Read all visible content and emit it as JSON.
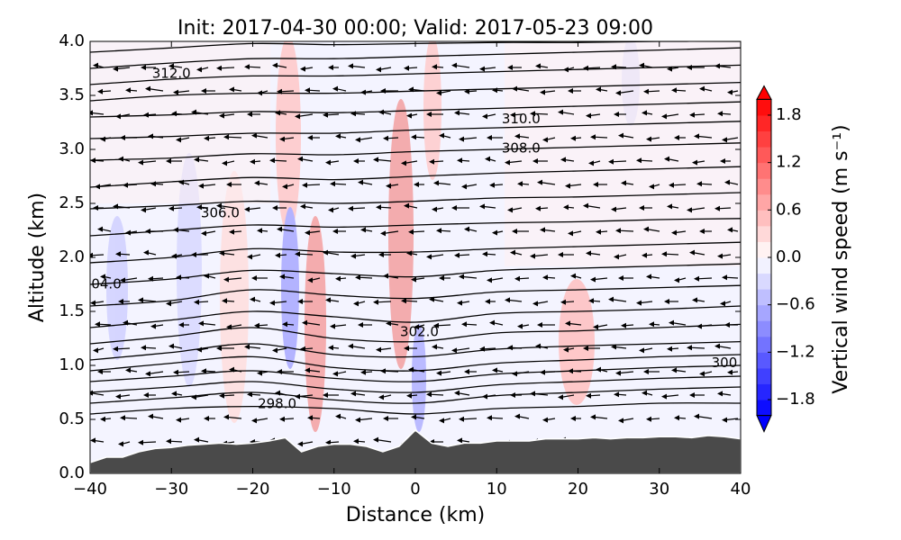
{
  "chart_data": {
    "type": "cross-section",
    "title": "Init: 2017-04-30 00:00; Valid: 2017-05-23 09:00",
    "x_label": "Distance (km)",
    "y_label": "Altitude (km)",
    "xlim": [
      -40,
      40
    ],
    "ylim": [
      0,
      4
    ],
    "xticks": [
      {
        "value": -40,
        "label": "−40"
      },
      {
        "value": -30,
        "label": "−30"
      },
      {
        "value": -20,
        "label": "−20"
      },
      {
        "value": -10,
        "label": "−10"
      },
      0,
      10,
      20,
      30,
      40
    ],
    "yticks": [
      {
        "value": 0,
        "label": "0.0"
      },
      {
        "value": 0.5,
        "label": "0.5"
      },
      {
        "value": 1,
        "label": "1.0"
      },
      {
        "value": 1.5,
        "label": "1.5"
      },
      {
        "value": 2,
        "label": "2.0"
      },
      {
        "value": 2.5,
        "label": "2.5"
      },
      {
        "value": 3,
        "label": "3.0"
      },
      {
        "value": 3.5,
        "label": "3.5"
      },
      {
        "value": 4,
        "label": "4.0"
      }
    ],
    "colorbar": {
      "label": "Vertical wind speed (m s⁻¹)",
      "clim": [
        -2,
        2
      ],
      "ticks": [
        {
          "value": -1.8,
          "label": "−1.8"
        },
        {
          "value": -1.2,
          "label": "−1.2"
        },
        {
          "value": -0.6,
          "label": "−0.6"
        },
        {
          "value": 0,
          "label": "0.0"
        },
        {
          "value": 0.6,
          "label": "0.6"
        },
        {
          "value": 1.2,
          "label": "1.2"
        },
        {
          "value": 1.8,
          "label": "1.8"
        }
      ]
    },
    "terrain": {
      "color": "#4a4a4a",
      "x": [
        -40,
        -38,
        -36,
        -34,
        -32,
        -30,
        -28,
        -26,
        -24,
        -22,
        -20,
        -18,
        -16,
        -14,
        -12,
        -10,
        -8,
        -6,
        -4,
        -2,
        0,
        2,
        4,
        6,
        8,
        10,
        12,
        14,
        16,
        18,
        20,
        22,
        24,
        26,
        28,
        30,
        32,
        34,
        36,
        38,
        40
      ],
      "values": [
        0.1,
        0.15,
        0.15,
        0.2,
        0.23,
        0.24,
        0.26,
        0.27,
        0.28,
        0.27,
        0.28,
        0.3,
        0.33,
        0.2,
        0.25,
        0.27,
        0.27,
        0.25,
        0.2,
        0.25,
        0.4,
        0.28,
        0.25,
        0.28,
        0.28,
        0.3,
        0.3,
        0.3,
        0.32,
        0.32,
        0.32,
        0.33,
        0.32,
        0.33,
        0.33,
        0.34,
        0.34,
        0.33,
        0.35,
        0.34,
        0.32
      ]
    },
    "isentrope_x": [
      -40,
      -30,
      -20,
      -10,
      0,
      10,
      20,
      30,
      40
    ],
    "isentropes": [
      [
        0.55,
        0.6,
        0.62,
        0.6,
        0.55,
        0.6,
        0.62,
        0.65,
        0.65
      ],
      [
        0.65,
        0.7,
        0.75,
        0.68,
        0.65,
        0.72,
        0.75,
        0.78,
        0.8
      ],
      [
        0.75,
        0.8,
        0.85,
        0.78,
        0.75,
        0.82,
        0.85,
        0.88,
        0.9
      ],
      [
        0.85,
        0.9,
        0.95,
        0.88,
        0.85,
        0.92,
        0.95,
        0.98,
        1.0
      ],
      [
        0.95,
        1.02,
        1.08,
        0.98,
        0.95,
        1.02,
        1.05,
        1.08,
        1.1
      ],
      [
        1.05,
        1.12,
        1.2,
        1.1,
        1.08,
        1.15,
        1.18,
        1.2,
        1.22
      ],
      [
        1.2,
        1.27,
        1.35,
        1.25,
        1.22,
        1.3,
        1.32,
        1.35,
        1.38
      ],
      [
        1.35,
        1.42,
        1.5,
        1.45,
        1.4,
        1.48,
        1.5,
        1.52,
        1.55
      ],
      [
        1.55,
        1.6,
        1.7,
        1.65,
        1.62,
        1.68,
        1.7,
        1.72,
        1.74
      ],
      [
        1.75,
        1.8,
        1.88,
        1.85,
        1.82,
        1.88,
        1.9,
        1.92,
        1.94
      ],
      [
        1.95,
        2.0,
        2.08,
        2.05,
        2.05,
        2.08,
        2.1,
        2.12,
        2.14
      ],
      [
        2.2,
        2.25,
        2.3,
        2.28,
        2.3,
        2.32,
        2.33,
        2.35,
        2.36
      ],
      [
        2.45,
        2.48,
        2.52,
        2.5,
        2.52,
        2.55,
        2.56,
        2.58,
        2.6
      ],
      [
        2.65,
        2.7,
        2.74,
        2.72,
        2.75,
        2.78,
        2.8,
        2.82,
        2.84
      ],
      [
        2.9,
        2.92,
        2.96,
        2.95,
        2.98,
        3.0,
        3.02,
        3.04,
        3.06
      ],
      [
        3.1,
        3.12,
        3.15,
        3.15,
        3.18,
        3.2,
        3.22,
        3.24,
        3.26
      ],
      [
        3.3,
        3.32,
        3.35,
        3.34,
        3.36,
        3.38,
        3.4,
        3.42,
        3.44
      ],
      [
        3.45,
        3.5,
        3.52,
        3.52,
        3.54,
        3.56,
        3.58,
        3.6,
        3.62
      ],
      [
        3.6,
        3.65,
        3.68,
        3.68,
        3.7,
        3.72,
        3.74,
        3.76,
        3.78
      ],
      [
        3.75,
        3.8,
        3.84,
        3.84,
        3.86,
        3.88,
        3.9,
        3.92,
        3.94
      ],
      [
        3.9,
        3.94,
        3.98,
        3.97,
        3.98,
        3.99,
        3.99,
        4.0,
        4.0
      ]
    ],
    "contour_labels": [
      {
        "text": "312.0",
        "x": -30,
        "y": 3.7
      },
      {
        "text": "310.0",
        "x": 13,
        "y": 3.28
      },
      {
        "text": "308.0",
        "x": 13,
        "y": 3.01
      },
      {
        "text": "306.0",
        "x": -24,
        "y": 2.41
      },
      {
        "text": "04.0",
        "x": -38,
        "y": 1.75
      },
      {
        "text": "302.0",
        "x": 0.5,
        "y": 1.31
      },
      {
        "text": "298.0",
        "x": -17,
        "y": 0.64
      },
      {
        "text": "300",
        "x": 38,
        "y": 1.02
      }
    ]
  }
}
